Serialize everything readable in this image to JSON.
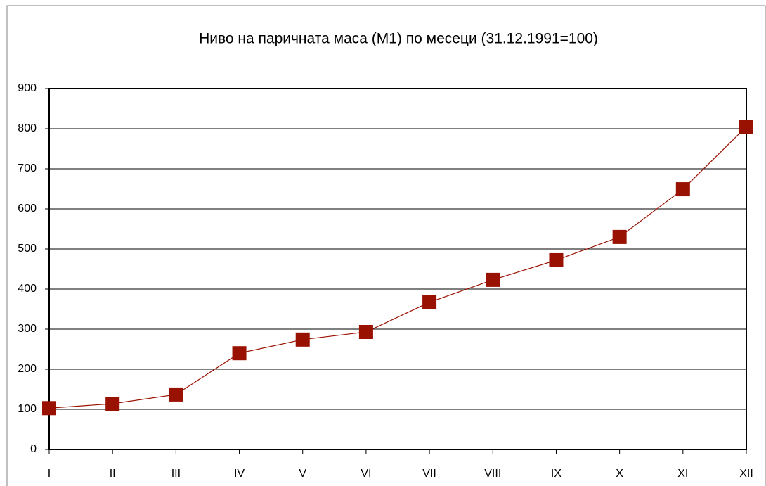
{
  "chart_data": {
    "type": "line",
    "title": "Ниво на паричната маса (М1) по месеци (31.12.1991=100)",
    "categories": [
      "I",
      "II",
      "III",
      "IV",
      "V",
      "VI",
      "VII",
      "VIII",
      "IX",
      "X",
      "XI",
      "XII"
    ],
    "values": [
      103,
      114,
      137,
      240,
      274,
      293,
      367,
      423,
      472,
      530,
      649,
      805
    ],
    "color": "#991100",
    "ylim": [
      0,
      900
    ],
    "yticks": [
      0,
      100,
      200,
      300,
      400,
      500,
      600,
      700,
      800,
      900
    ],
    "grid": true
  }
}
